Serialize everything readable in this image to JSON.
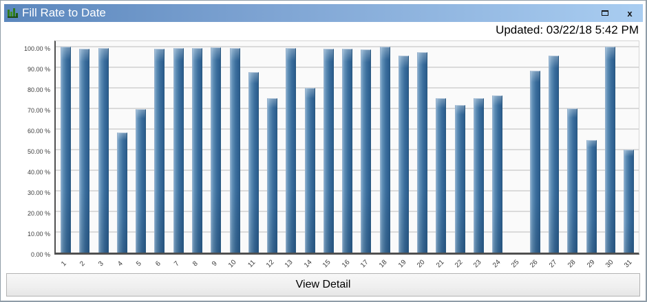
{
  "window": {
    "title": "Fill Rate to Date",
    "title_icon": "bar-chart-icon",
    "controls": {
      "maximize_icon": "maximize-icon",
      "close_icon": "close-icon",
      "close_glyph": "x"
    }
  },
  "updated_label": "Updated: 03/22/18 5:42 PM",
  "chart_data": {
    "type": "bar",
    "title": "Fill Rate to Date",
    "xlabel": "",
    "ylabel": "",
    "ylim": [
      0,
      100
    ],
    "grid": true,
    "legend": false,
    "categories": [
      "1",
      "2",
      "3",
      "4",
      "5",
      "6",
      "7",
      "8",
      "9",
      "10",
      "11",
      "12",
      "13",
      "14",
      "15",
      "16",
      "17",
      "18",
      "19",
      "20",
      "21",
      "22",
      "23",
      "24",
      "25",
      "26",
      "27",
      "28",
      "29",
      "30",
      "31"
    ],
    "values": [
      99.9,
      99.0,
      99.4,
      58.3,
      69.6,
      99.1,
      99.3,
      99.3,
      99.7,
      99.4,
      87.6,
      74.9,
      99.4,
      80.1,
      99.1,
      99.0,
      98.7,
      100.0,
      95.7,
      97.5,
      74.9,
      71.8,
      74.9,
      76.2,
      0,
      88.3,
      95.6,
      69.9,
      54.7,
      100.0,
      50.0
    ],
    "y_ticks": [
      {
        "value": 100,
        "label": "100.00 %"
      },
      {
        "value": 90,
        "label": "90.00 %"
      },
      {
        "value": 80,
        "label": "80.00 %"
      },
      {
        "value": 70,
        "label": "70.00 %"
      },
      {
        "value": 60,
        "label": "60.00 %"
      },
      {
        "value": 50,
        "label": "50.00 %"
      },
      {
        "value": 40,
        "label": "40.00 %"
      },
      {
        "value": 30,
        "label": "30.00 %"
      },
      {
        "value": 20,
        "label": "20.00 %"
      },
      {
        "value": 10,
        "label": "10.00 %"
      },
      {
        "value": 0,
        "label": "0.00 %"
      }
    ],
    "bar_colors": {
      "light": "#85abce",
      "dark": "#2a5c8c"
    }
  },
  "footer": {
    "view_detail_label": "View Detail"
  },
  "colors": {
    "titlebar_left": "#5b87bd",
    "titlebar_right": "#a9cdf1",
    "title_text": "#ffffff",
    "icon_green": "#2f7a1c",
    "gridline": "#dadada",
    "axis": "#4f4f4f",
    "plot_background": "#fafafa",
    "button_background": "#efefef",
    "window_border": "#8f9ca7"
  }
}
